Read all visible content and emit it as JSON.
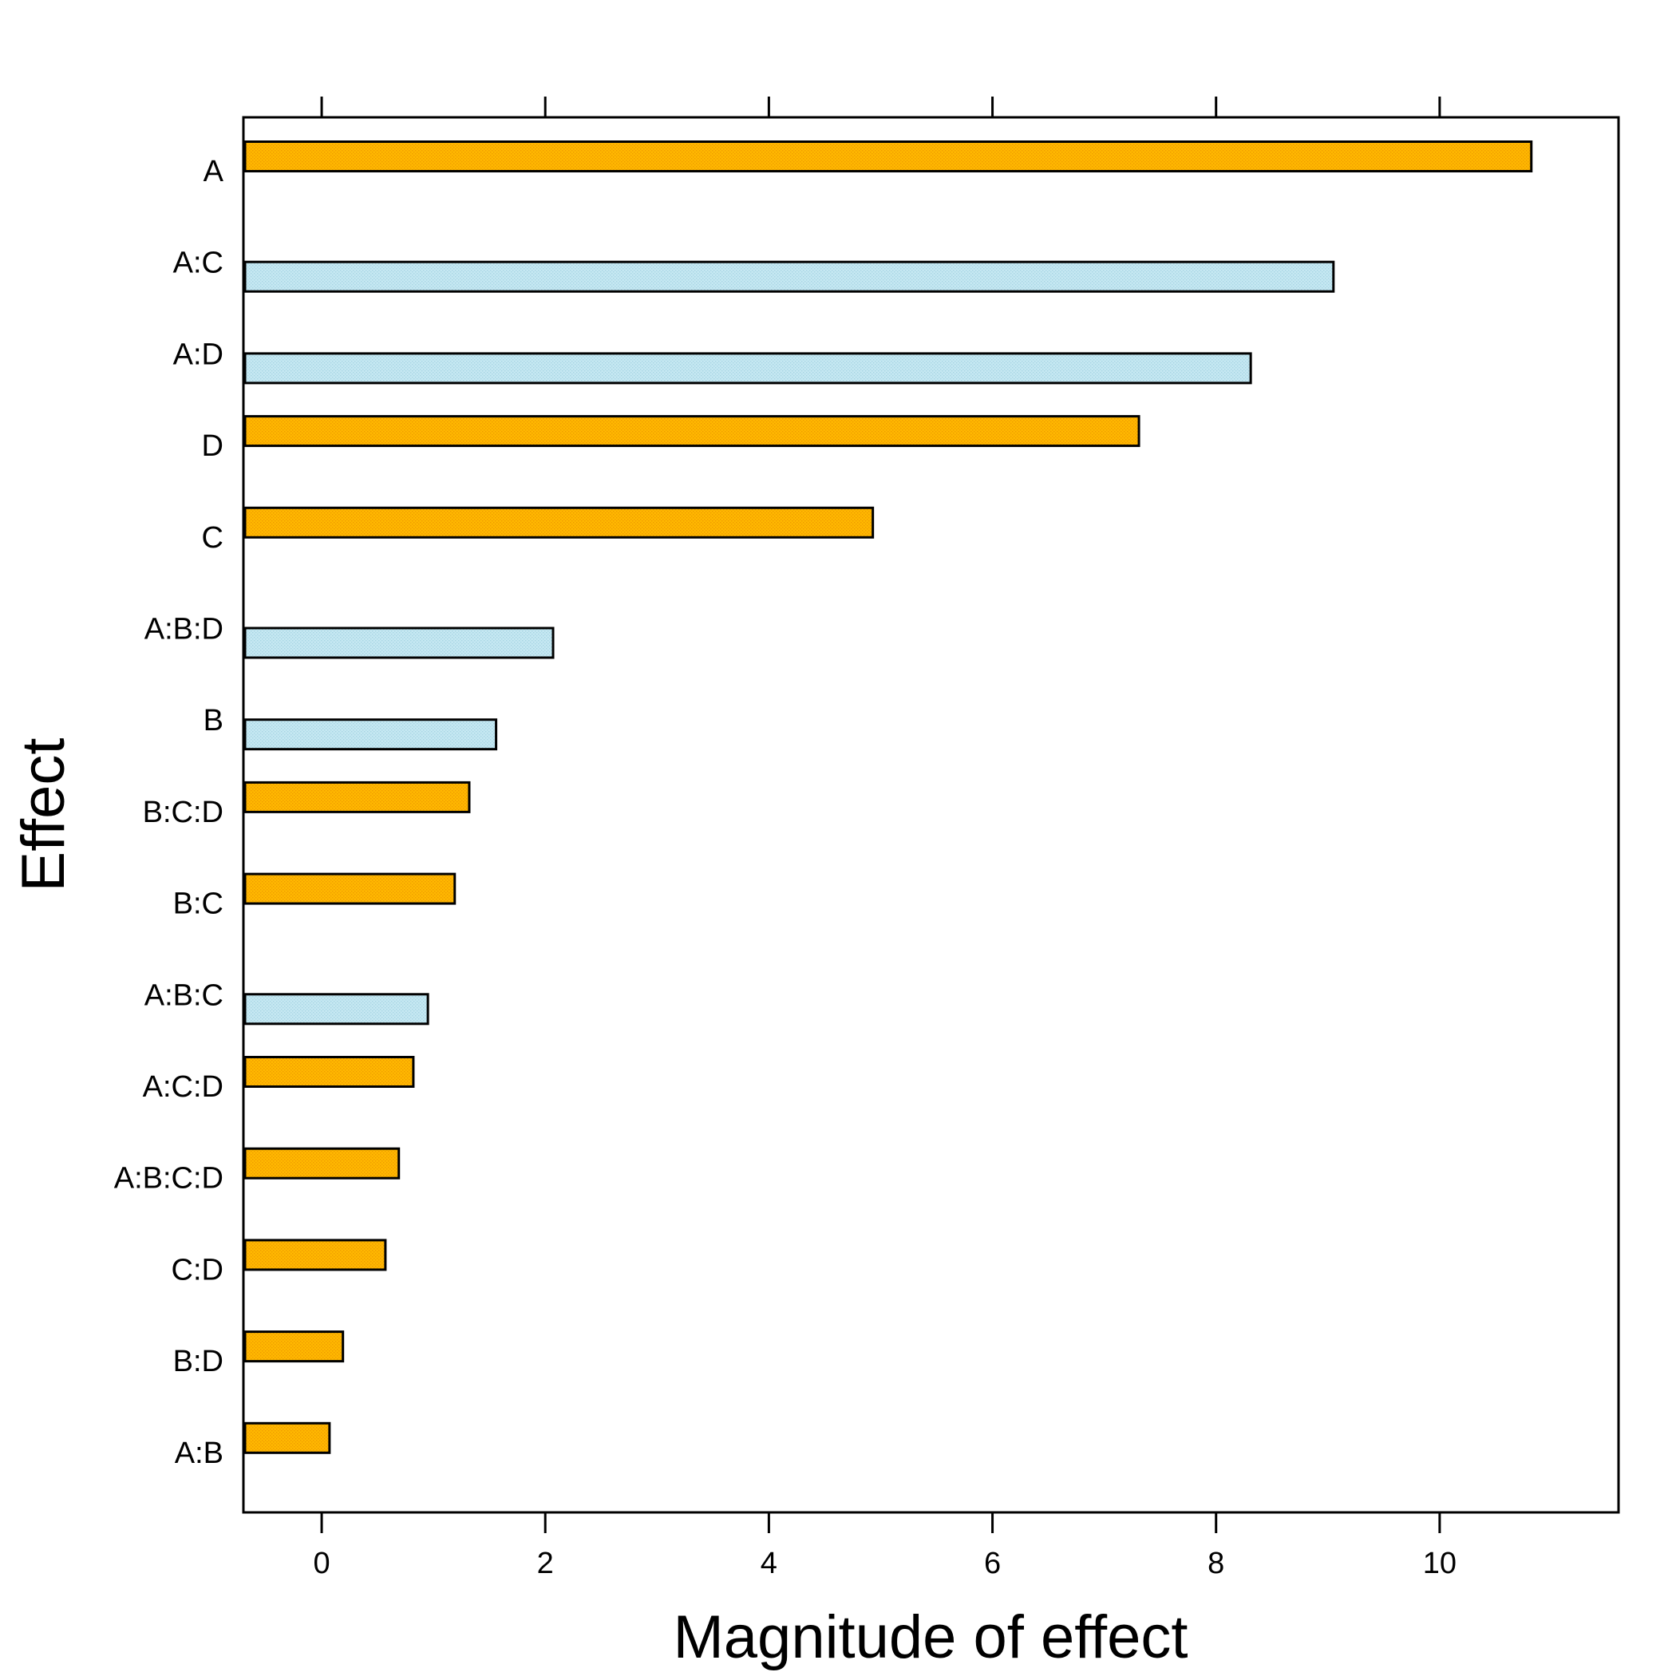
{
  "chart_data": {
    "type": "bar",
    "orientation": "horizontal",
    "title": "",
    "xlabel": "Magnitude of effect",
    "ylabel": "Effect",
    "xlim": [
      -0.7,
      11.6
    ],
    "xticks": [
      0,
      2,
      4,
      6,
      8,
      10
    ],
    "grid": false,
    "legend": "none",
    "colors": {
      "positive": "#FFB800",
      "negative": "#BEE3EF",
      "outline": "#000000"
    },
    "categories": [
      "A",
      "A:C",
      "A:D",
      "D",
      "C",
      "A:B:D",
      "B",
      "B:C:D",
      "B:C",
      "A:B:C",
      "A:C:D",
      "A:B:C:D",
      "C:D",
      "B:D",
      "A:B"
    ],
    "values": [
      10.82,
      9.05,
      8.31,
      7.31,
      4.93,
      2.07,
      1.56,
      1.32,
      1.19,
      0.95,
      0.82,
      0.69,
      0.57,
      0.19,
      0.07
    ],
    "bar_group": [
      "positive",
      "negative",
      "negative",
      "positive",
      "positive",
      "negative",
      "negative",
      "positive",
      "positive",
      "negative",
      "positive",
      "positive",
      "positive",
      "positive",
      "positive"
    ]
  }
}
